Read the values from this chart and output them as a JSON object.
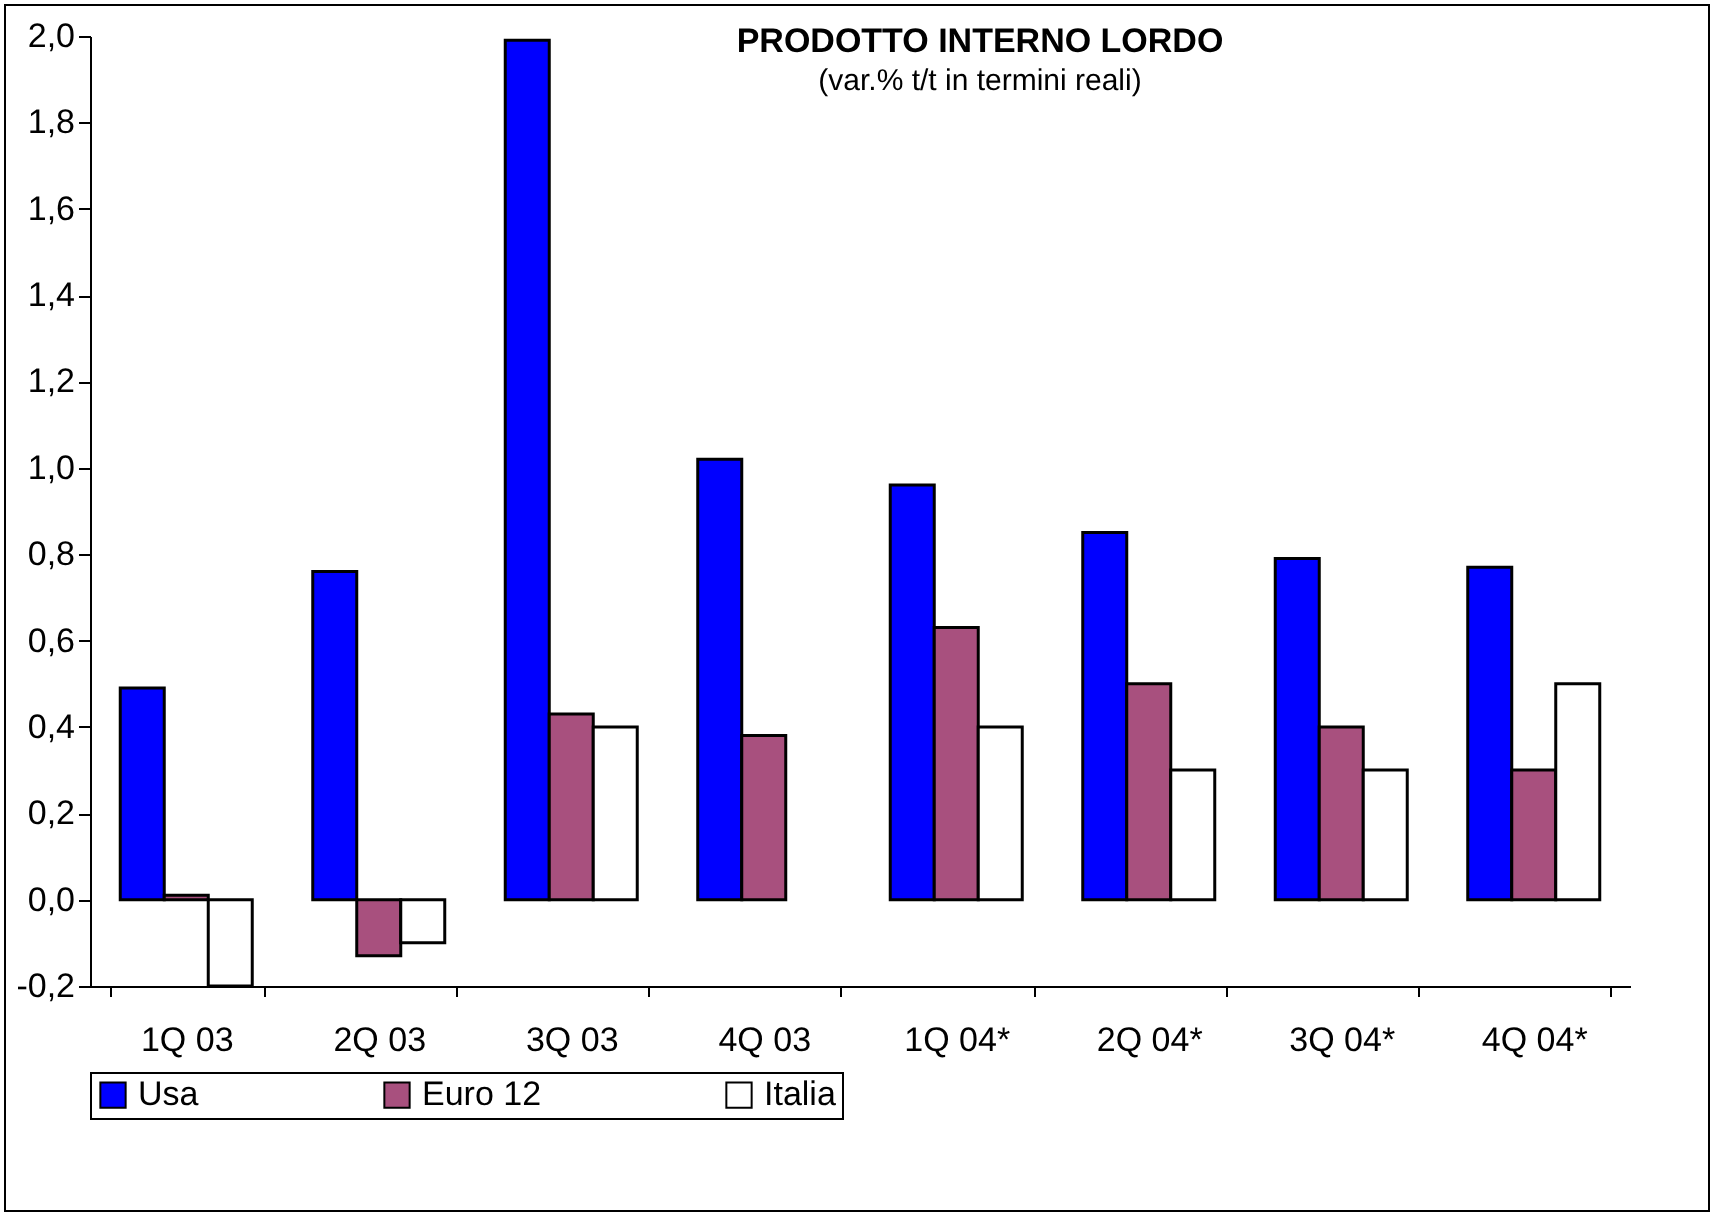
{
  "chart_data": {
    "type": "bar",
    "title": "PRODOTTO INTERNO LORDO",
    "subtitle": "(var.% t/t in termini reali)",
    "categories": [
      "1Q 03",
      "2Q 03",
      "3Q 03",
      "4Q 03",
      "1Q 04*",
      "2Q 04*",
      "3Q 04*",
      "4Q 04*"
    ],
    "series": [
      {
        "name": "Usa",
        "color": "#0000ff",
        "values": [
          0.49,
          0.76,
          1.99,
          1.02,
          0.96,
          0.85,
          0.79,
          0.77
        ]
      },
      {
        "name": "Euro 12",
        "color": "#a8507e",
        "values": [
          0.01,
          -0.13,
          0.43,
          0.38,
          0.63,
          0.5,
          0.4,
          0.3
        ]
      },
      {
        "name": "Italia",
        "color": "#ffffff",
        "values": [
          -0.2,
          -0.1,
          0.4,
          null,
          0.4,
          0.3,
          0.3,
          0.5
        ]
      }
    ],
    "ylim": [
      -0.2,
      2.0
    ],
    "yticks": [
      {
        "value": -0.2,
        "label": "-0,2"
      },
      {
        "value": 0,
        "label": "0,0"
      },
      {
        "value": 0.2,
        "label": "0,2"
      },
      {
        "value": 0.4,
        "label": "0,4"
      },
      {
        "value": 0.6,
        "label": "0,6"
      },
      {
        "value": 0.8,
        "label": "0,8"
      },
      {
        "value": 1.0,
        "label": "1,0"
      },
      {
        "value": 1.2,
        "label": "1,2"
      },
      {
        "value": 1.4,
        "label": "1,4"
      },
      {
        "value": 1.6,
        "label": "1,6"
      },
      {
        "value": 1.8,
        "label": "1,8"
      },
      {
        "value": 2.0,
        "label": "2,0"
      }
    ],
    "legend": "bottom",
    "grid": false
  }
}
